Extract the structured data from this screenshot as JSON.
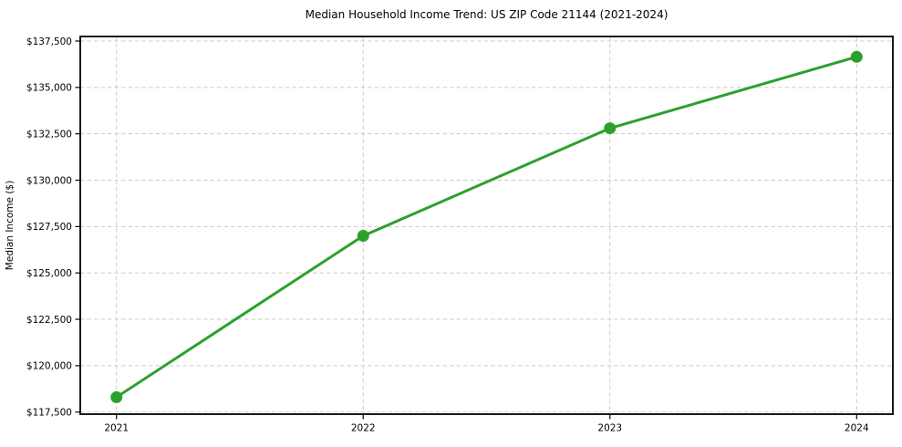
{
  "chart_data": {
    "type": "line",
    "title": "Median Household Income Trend: US ZIP Code 21144 (2021-2024)",
    "xlabel": "",
    "ylabel": "Median Income ($)",
    "categories": [
      "2021",
      "2022",
      "2023",
      "2024"
    ],
    "series": [
      {
        "name": "Median Household Income",
        "values": [
          118300,
          127000,
          132800,
          136650
        ]
      }
    ],
    "y_ticks": [
      117500,
      120000,
      122500,
      125000,
      127500,
      130000,
      132500,
      135000,
      137500
    ],
    "y_tick_labels": [
      "$117,500",
      "$120,000",
      "$122,500",
      "$125,000",
      "$127,500",
      "$130,000",
      "$132,500",
      "$135,000",
      "$137,500"
    ],
    "ylim": [
      117250,
      137750
    ],
    "grid": true,
    "legend": "none",
    "line_color": "#2ca02c",
    "marker": "circle",
    "grid_color": "#cccccc",
    "axis_color": "#000000",
    "text_color": "#000000",
    "background_color": "#ffffff"
  }
}
